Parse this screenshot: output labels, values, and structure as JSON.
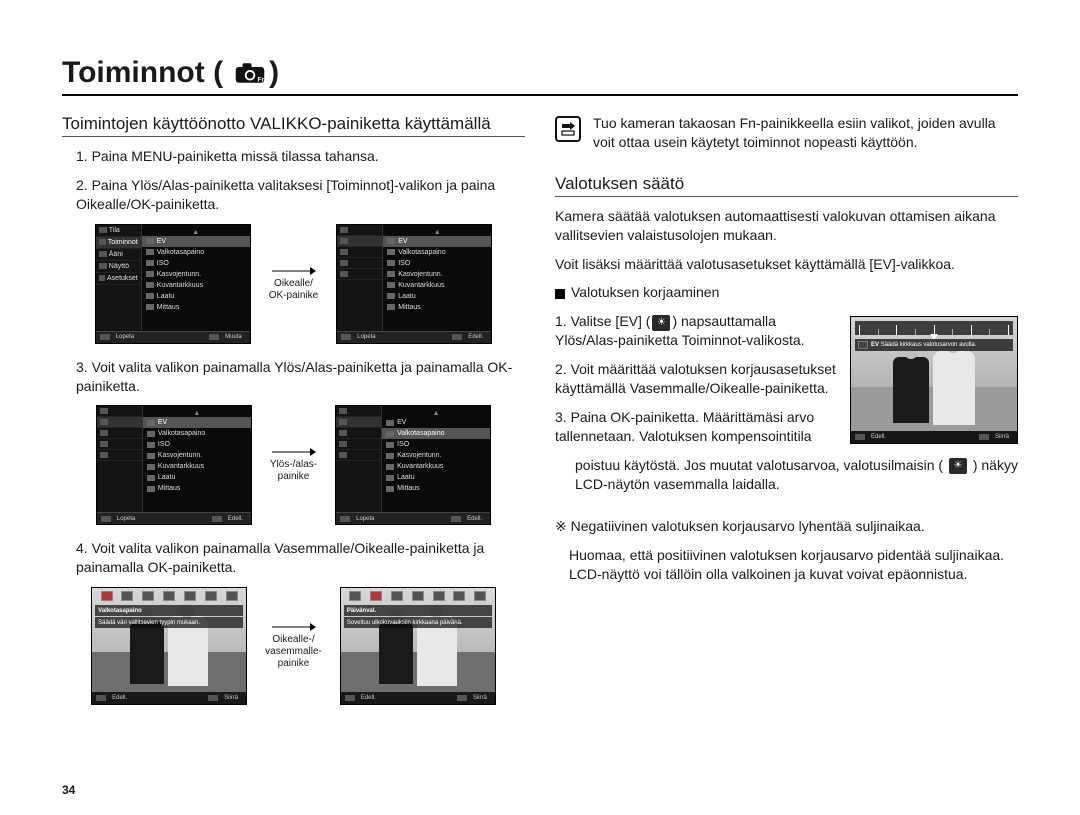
{
  "page_number": "34",
  "title": "Toiminnot (",
  "title_close": ")",
  "left": {
    "heading": "Toimintojen käyttöönotto VALIKKO-painiketta käyttämällä",
    "step1": "1. Paina MENU-painiketta missä tilassa tahansa.",
    "step2": "2. Paina Ylös/Alas-painiketta valitaksesi [Toiminnot]-valikon ja paina Oikealle/OK-painiketta.",
    "step3": "3. Voit valita valikon painamalla Ylös/Alas-painiketta ja painamalla OK-painiketta.",
    "step4": "4. Voit valita valikon painamalla Vasemmalle/Oikealle-painiketta ja painamalla OK-painiketta.",
    "arrow1": "Oikealle/\nOK-painike",
    "arrow2": "Ylös-/alas-\npainike",
    "arrow3": "Oikealle-/\nvasemmalle-\npainike",
    "menu": {
      "left_items": [
        "Tila",
        "Toiminnot",
        "Ääni",
        "Näyttö",
        "Asetukset"
      ],
      "right_items": [
        "EV",
        "Valkotasapaino",
        "ISO",
        "Kasvojentunn.",
        "Kuvantarkkuus",
        "Laatu",
        "Mittaus"
      ],
      "sel_left": 1,
      "sel_right_a": 0,
      "sel_right_b": 1,
      "bot_left_a": "Lopeta",
      "bot_right_a": "Muuta",
      "bot_left_b": "Lopeta",
      "bot_right_b": "Edell."
    },
    "photo": {
      "strip_a_label": "Valkotasapaino",
      "strip_a_desc": "Säädä väri vallitsevien tyypin mukaan.",
      "strip_b_label": "Päivänval.",
      "strip_b_desc": "Soveltuu ulkokuvauksiin kirkkaana päivänä.",
      "bot_l": "Edell.",
      "bot_r": "Siirrä"
    }
  },
  "right": {
    "tip": "Tuo kameran takaosan Fn-painikkeella esiin valikot, joiden avulla voit ottaa usein käytetyt toiminnot nopeasti käyttöön.",
    "heading": "Valotuksen säätö",
    "p1": "Kamera säätää valotuksen automaattisesti valokuvan ottamisen aikana vallitsevien valaistusolojen mukaan.",
    "p2": "Voit lisäksi määrittää valotusasetukset käyttämällä [EV]-valikkoa.",
    "bullet": "Valotuksen korjaaminen",
    "s1a": "1. Valitse [EV] (",
    "s1b": ") napsauttamalla Ylös/Alas-painiketta Toiminnot-valikosta.",
    "s2": "2. Voit määrittää valotuksen korjausasetukset käyttämällä Vasemmalle/Oikealle-painiketta.",
    "s3": "3. Paina OK-painiketta. Määrittämäsi arvo tallennetaan. Valotuksen kompensointitila",
    "s3b_a": "poistuu käytöstä. Jos muutat valotusarvoa, valotusilmaisin (",
    "s3b_b": ") näkyy LCD-näytön vasemmalla laidalla.",
    "note_a": "※ Negatiivinen valotuksen korjausarvo lyhentää suljinaikaa.",
    "note_b": "Huomaa, että positiivinen valotuksen korjausarvo pidentää suljinaikaa. LCD-näyttö voi tällöin olla valkoinen ja kuvat voivat epäonnistua.",
    "ev": {
      "label": "EV",
      "desc": "Säädä kirkkaus valotusarvon avulla.",
      "bot_l": "Edell.",
      "bot_r": "Siirrä"
    }
  },
  "colors": {
    "text": "#1a1a1a",
    "rule": "#000000",
    "menu_bg": "#0a0a0a",
    "menu_sel": "#555555"
  }
}
